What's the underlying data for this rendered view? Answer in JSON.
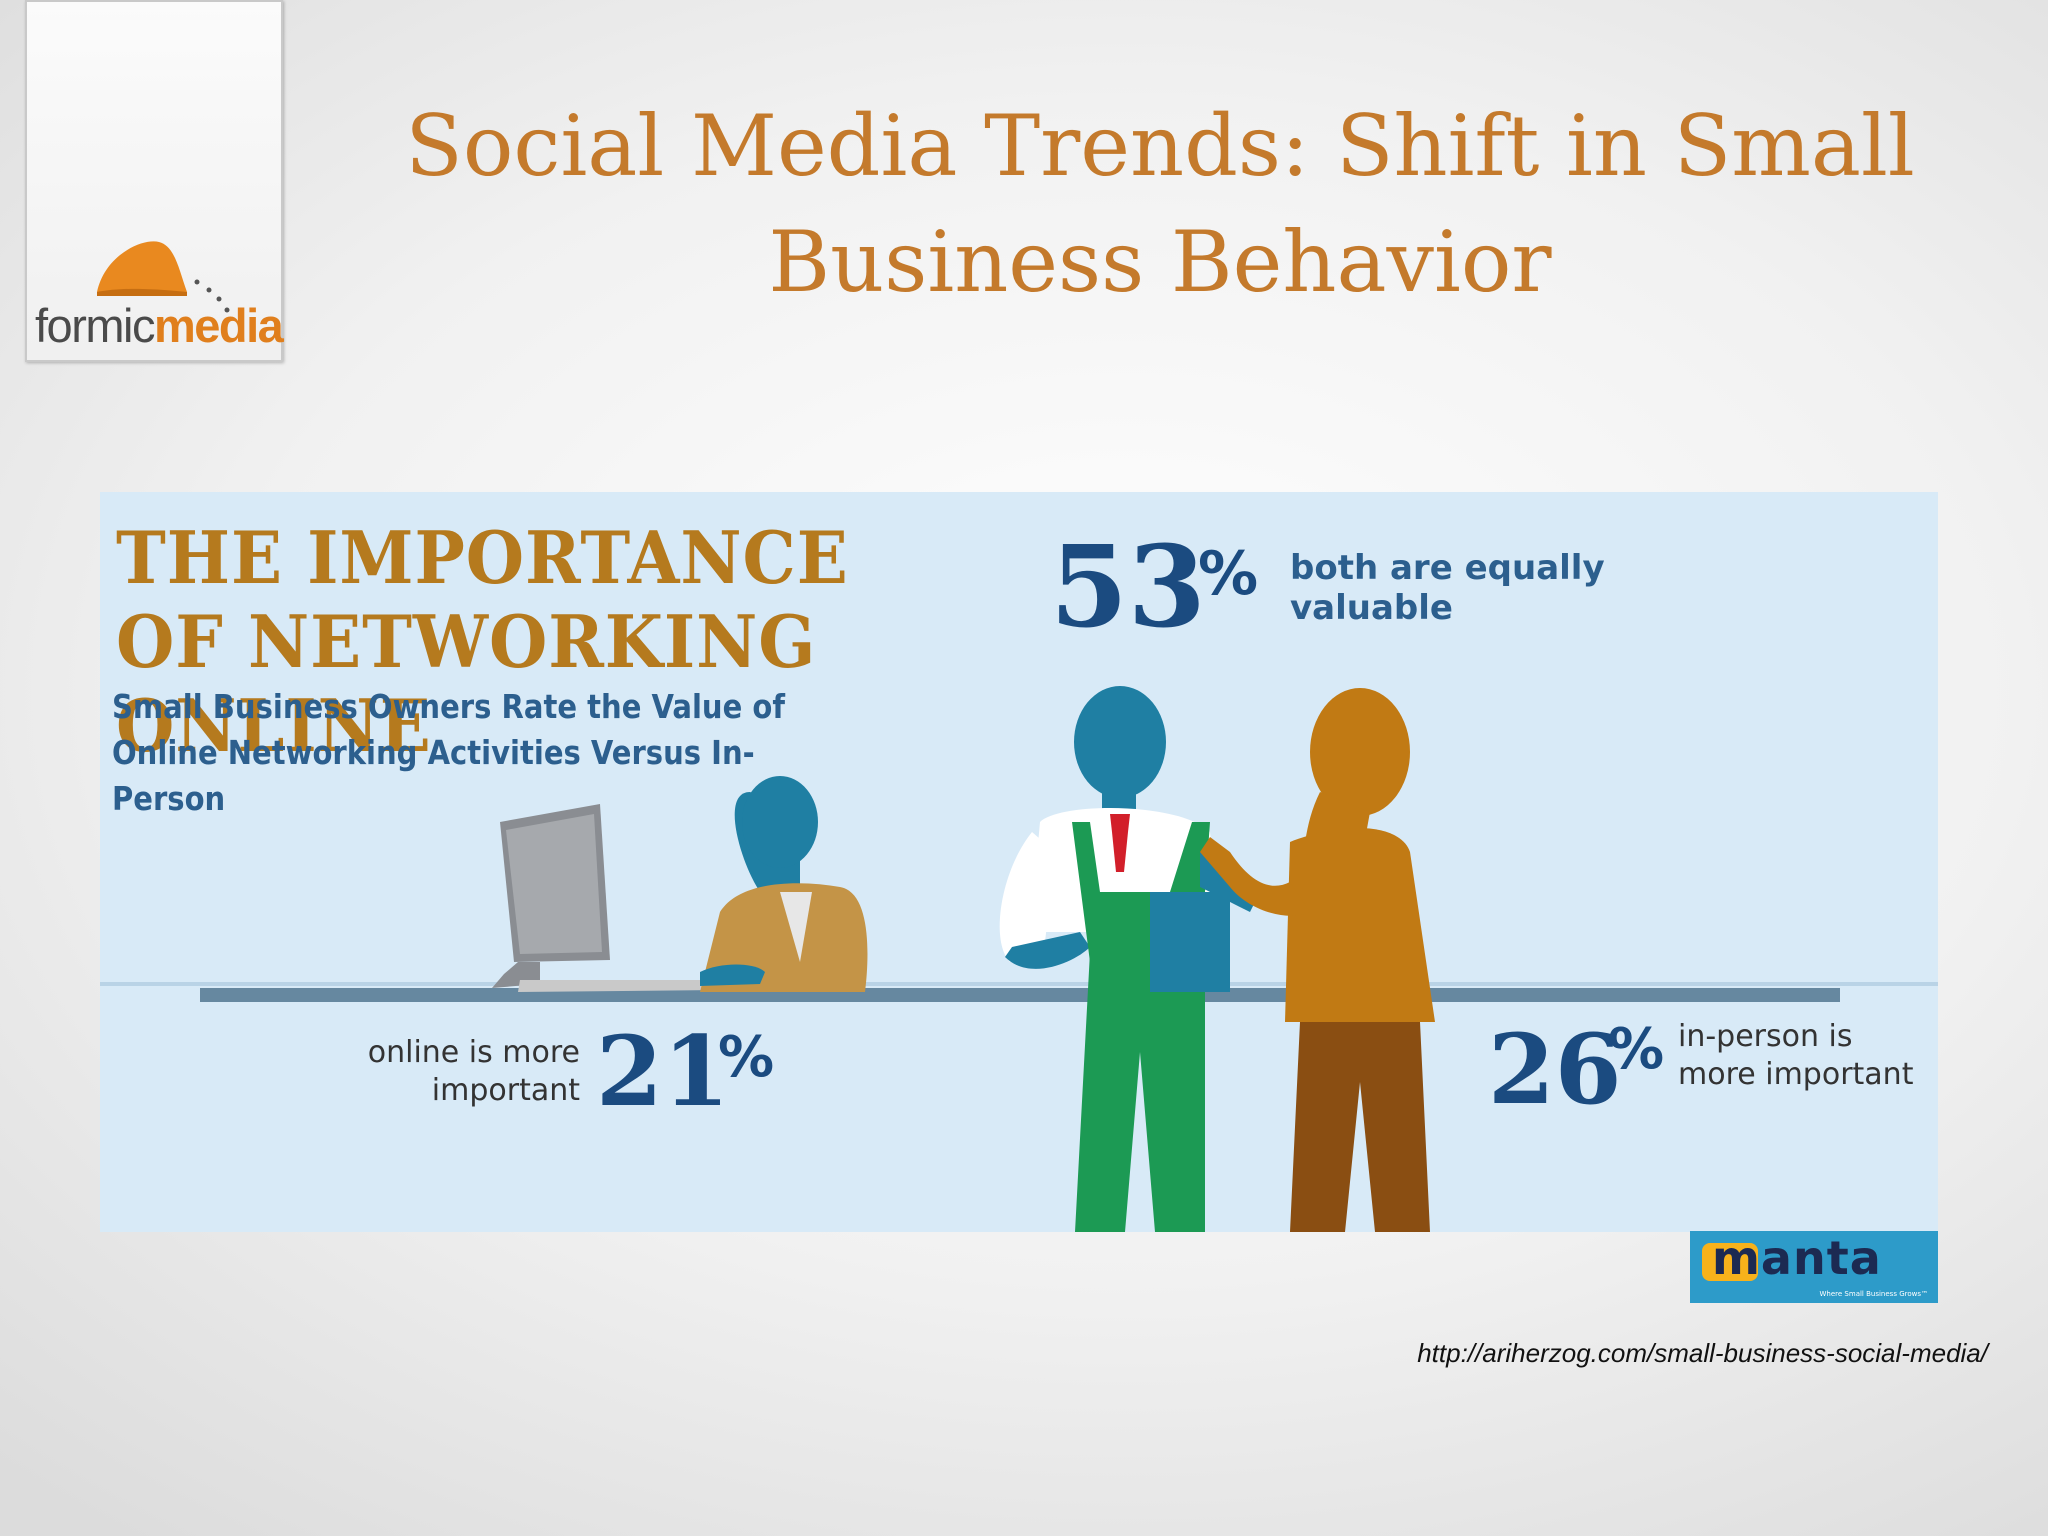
{
  "slide": {
    "title": "Social Media Trends: Shift in Small Business Behavior"
  },
  "logo": {
    "brand_light": "formic",
    "brand_bold": "media",
    "accent_color": "#e07f1d"
  },
  "infographic": {
    "heading": "THE IMPORTANCE OF NETWORKING ONLINE",
    "subtitle": "Small Business Owners Rate the Value of Online Networking Activities Versus In-Person",
    "stats": [
      {
        "value": "53",
        "unit": "%",
        "label": "both are equally valuable"
      },
      {
        "value": "21",
        "unit": "%",
        "label_line1": "online is more",
        "label_line2": "important"
      },
      {
        "value": "26",
        "unit": "%",
        "label_line1": "in-person is",
        "label_line2": "more important"
      }
    ],
    "colors": {
      "heading": "#b57a1e",
      "numbers": "#1b4b80",
      "background": "#d8eaf7"
    }
  },
  "badge": {
    "name": "manta",
    "tagline": "Where Small Business Grows™"
  },
  "source": {
    "url": "http://ariherzog.com/small-business-social-media/"
  }
}
